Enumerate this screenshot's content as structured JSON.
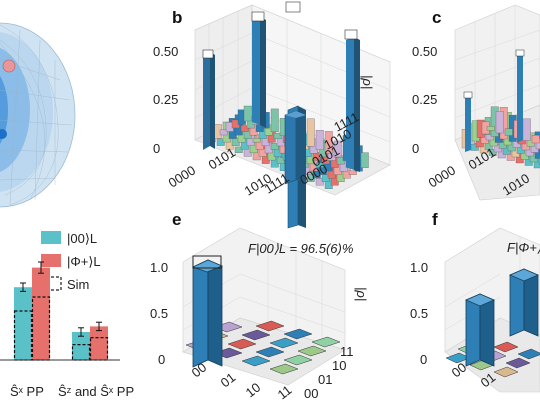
{
  "panels": {
    "b": "b",
    "c": "c",
    "e": "e",
    "f": "f"
  },
  "panel_b": {
    "zticks": [
      "0.50",
      "0.25",
      "0"
    ],
    "zlabel": "|ρ|",
    "xticks": [
      "0000",
      "0101",
      "1010",
      "1111"
    ],
    "yticks": [
      "1111",
      "1010",
      "0101",
      "0000"
    ]
  },
  "panel_c": {
    "zticks": [
      "0.50",
      "0.25",
      "0"
    ],
    "xticks": [
      "0000",
      "0101",
      "1010"
    ]
  },
  "panel_e": {
    "zticks": [
      "1.0",
      "0.5",
      "0"
    ],
    "zlabel": "|ρ|",
    "fidelity": "F|00⟩L = 96.5(6)%",
    "xticks": [
      "00",
      "01",
      "10",
      "11"
    ],
    "yticks": [
      "11",
      "10",
      "01",
      "00"
    ]
  },
  "panel_f": {
    "zticks": [
      "1.0",
      "0.5",
      "0"
    ],
    "fidelity": "F|Φ+⟩",
    "xticks": [
      "00",
      "01"
    ]
  },
  "colors": {
    "teal": "#5bc1c9",
    "salmon": "#e5706c",
    "blue": "#2d7fb5"
  },
  "chart_data": {
    "type": "bar",
    "categories": [
      "Ŝˣ PP",
      "Ŝᶻ and Ŝˣ PP"
    ],
    "series": [
      {
        "name": "|00⟩L",
        "values": [
          0.52,
          0.2
        ],
        "errors": [
          0.03,
          0.03
        ],
        "sim": [
          0.35,
          0.11
        ],
        "color": "#5bc1c9"
      },
      {
        "name": "|Φ+⟩L",
        "values": [
          0.66,
          0.24
        ],
        "errors": [
          0.04,
          0.03
        ],
        "sim": [
          0.45,
          0.16
        ],
        "color": "#e5706c"
      }
    ],
    "sim_label": "Sim",
    "ylim": [
      0,
      1.0
    ]
  }
}
